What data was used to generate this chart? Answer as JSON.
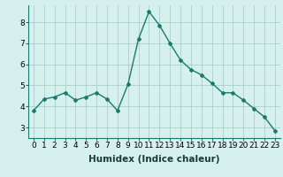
{
  "x": [
    0,
    1,
    2,
    3,
    4,
    5,
    6,
    7,
    8,
    9,
    10,
    11,
    12,
    13,
    14,
    15,
    16,
    17,
    18,
    19,
    20,
    21,
    22,
    23
  ],
  "y": [
    3.8,
    4.35,
    4.45,
    4.65,
    4.3,
    4.45,
    4.65,
    4.35,
    3.8,
    5.05,
    7.2,
    8.5,
    7.85,
    7.0,
    6.2,
    5.75,
    5.5,
    5.1,
    4.65,
    4.65,
    4.3,
    3.9,
    3.5,
    2.85
  ],
  "line_color": "#1a7a6e",
  "marker": "D",
  "marker_size": 2.0,
  "line_width": 1.0,
  "background_color": "#d6f0ee",
  "grid_color": "#aacfcc",
  "xlabel": "Humidex (Indice chaleur)",
  "xlabel_fontsize": 7.5,
  "tick_fontsize": 6.5,
  "ylim": [
    2.5,
    8.8
  ],
  "xlim": [
    -0.5,
    23.5
  ],
  "yticks": [
    3,
    4,
    5,
    6,
    7,
    8
  ],
  "xticks": [
    0,
    1,
    2,
    3,
    4,
    5,
    6,
    7,
    8,
    9,
    10,
    11,
    12,
    13,
    14,
    15,
    16,
    17,
    18,
    19,
    20,
    21,
    22,
    23
  ]
}
